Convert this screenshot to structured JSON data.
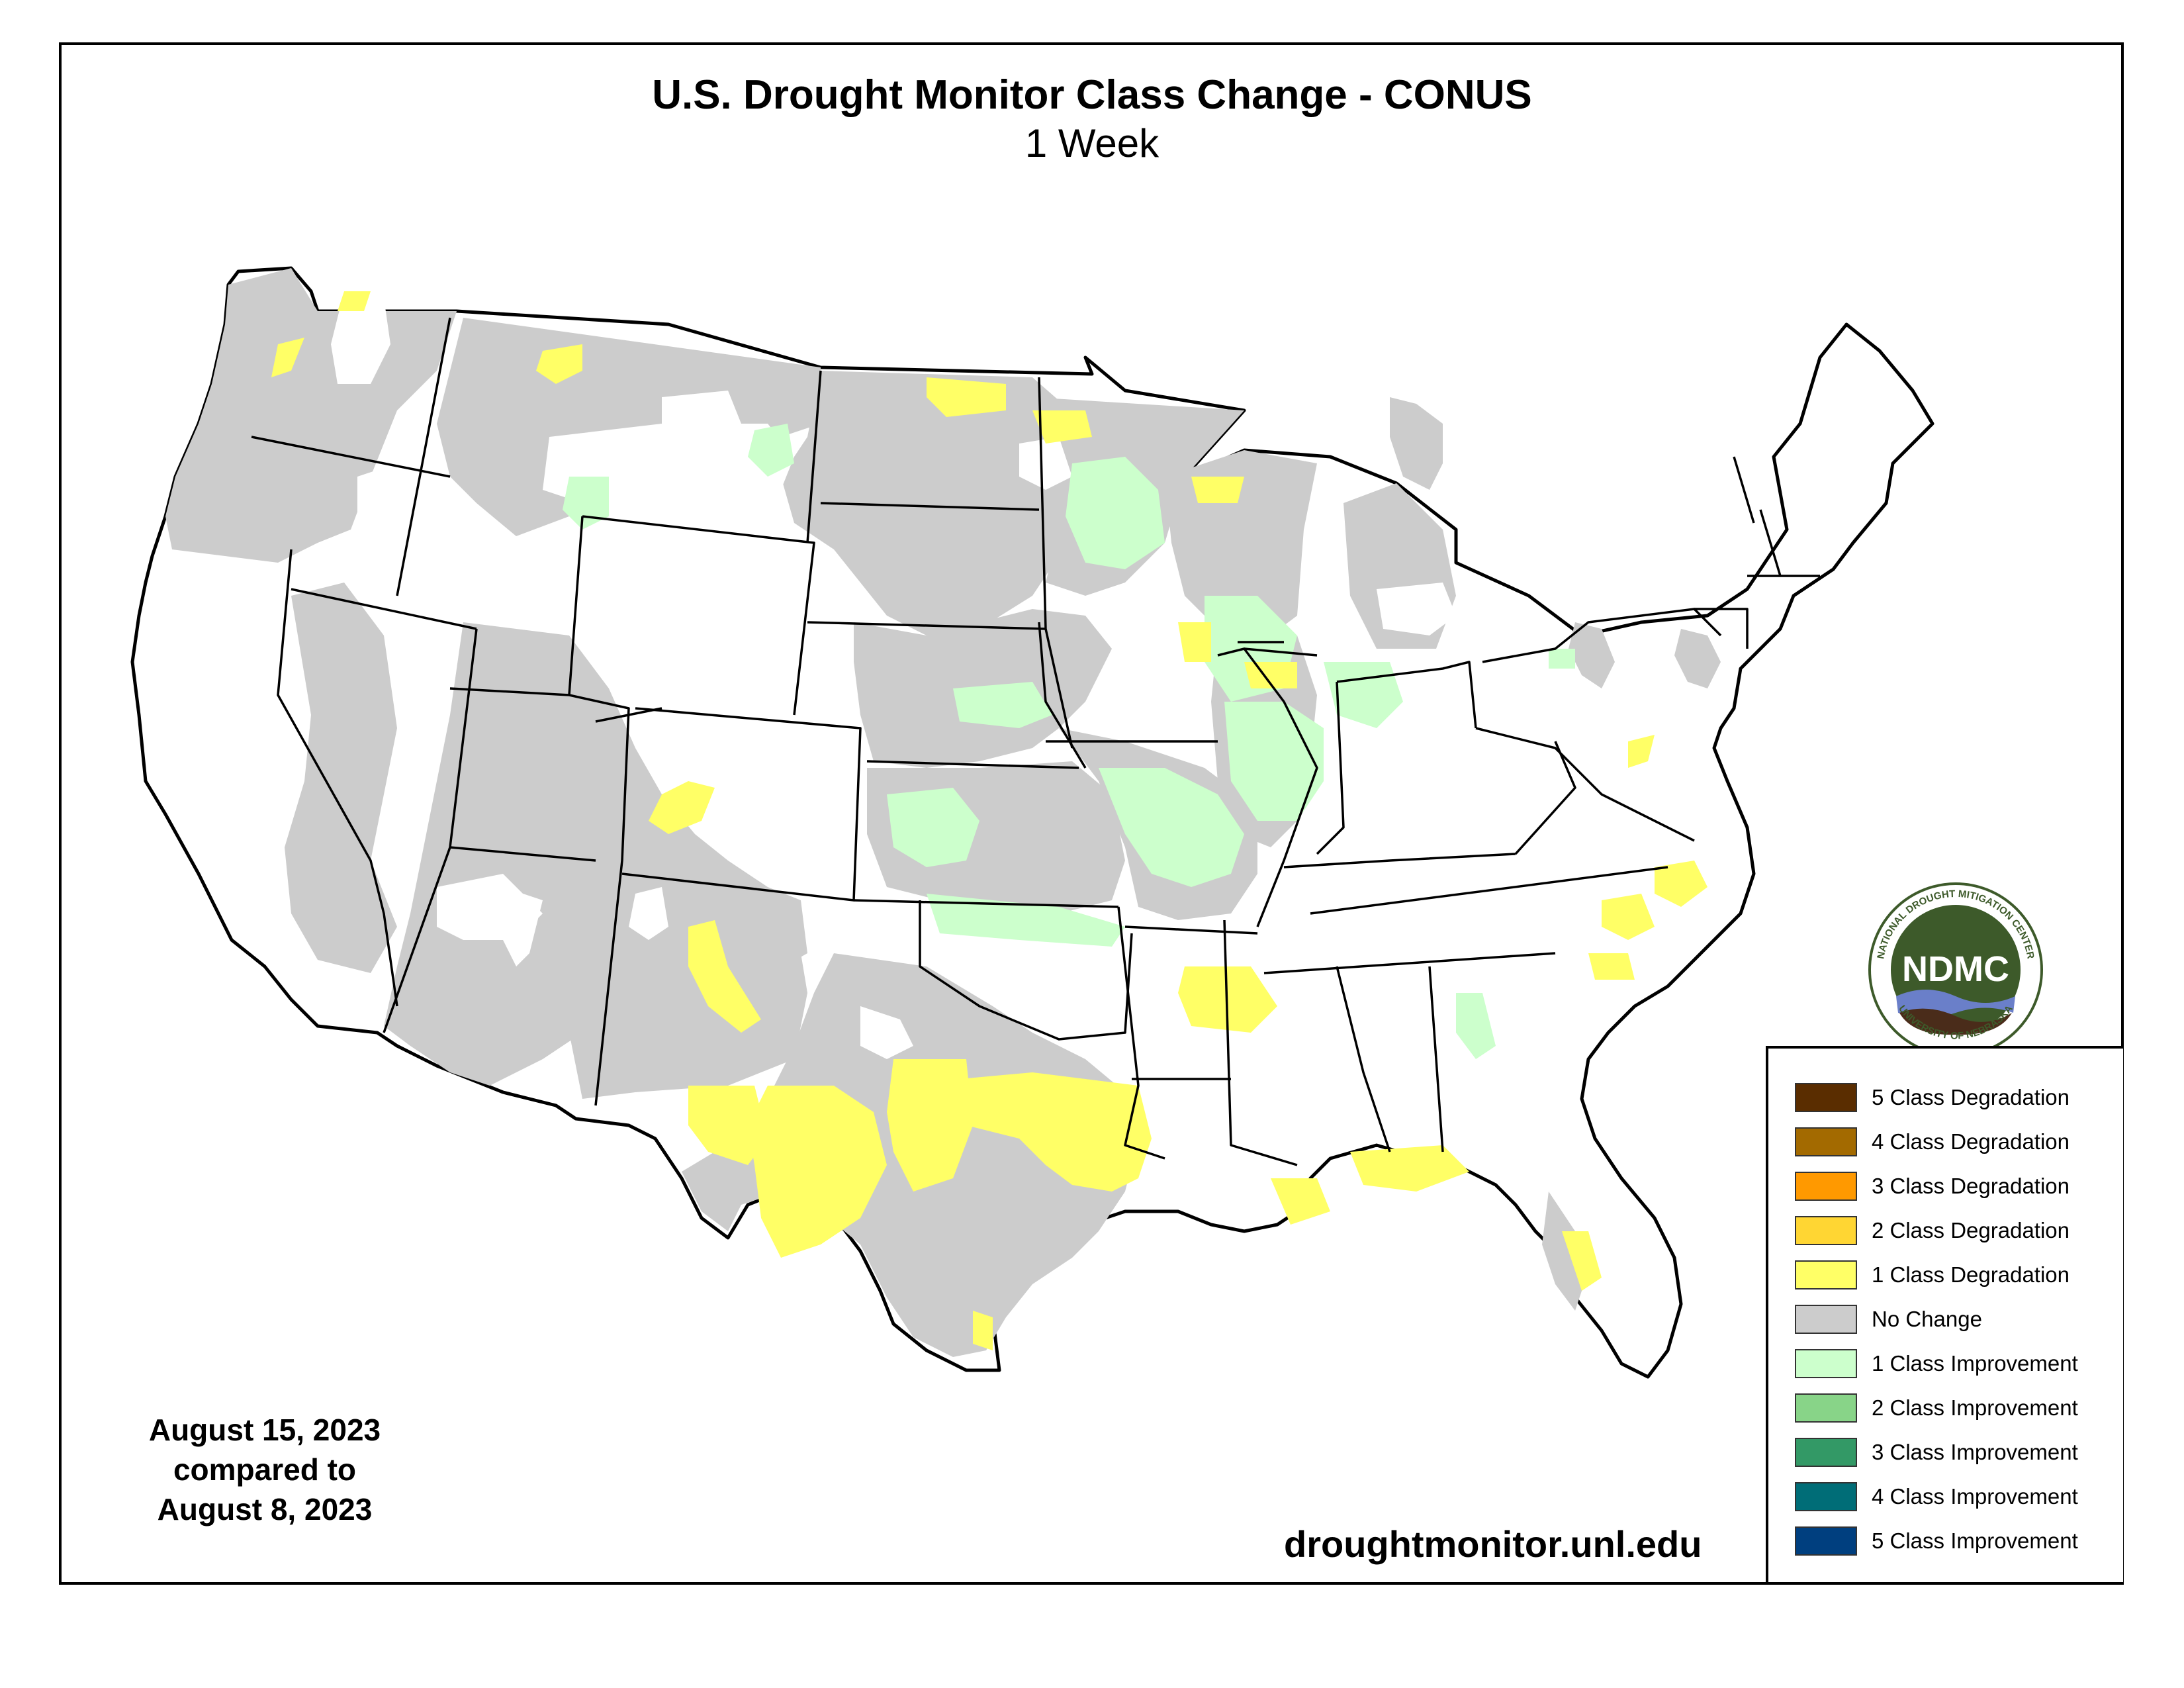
{
  "title": "U.S. Drought Monitor Class Change - CONUS",
  "subtitle": "1 Week",
  "date_block": {
    "line1": "August 15, 2023",
    "line2": "compared to",
    "line3": "August 8, 2023"
  },
  "website": "droughtmonitor.unl.edu",
  "logo": {
    "center_text": "NDMC",
    "ring_top": "NATIONAL DROUGHT MITIGATION CENTER",
    "ring_bottom": "UNIVERSITY OF NEBRASKA"
  },
  "legend": {
    "items": [
      {
        "label": "5 Class Degradation",
        "color": "#5a2d00"
      },
      {
        "label": "4 Class Degradation",
        "color": "#a36a00"
      },
      {
        "label": "3 Class Degradation",
        "color": "#ff9900"
      },
      {
        "label": "2 Class Degradation",
        "color": "#ffd633"
      },
      {
        "label": "1 Class Degradation",
        "color": "#ffff66"
      },
      {
        "label": "No Change",
        "color": "#cccccc"
      },
      {
        "label": "1 Class Improvement",
        "color": "#ccffcc"
      },
      {
        "label": "2 Class Improvement",
        "color": "#88d488"
      },
      {
        "label": "3 Class Improvement",
        "color": "#339966"
      },
      {
        "label": "4 Class Improvement",
        "color": "#006d77"
      },
      {
        "label": "5 Class Improvement",
        "color": "#003f7f"
      }
    ]
  },
  "colors": {
    "no_change": "#cccccc",
    "one_class_degradation": "#ffff66",
    "one_class_improvement": "#ccffcc",
    "logo_green": "#3d5a2a",
    "logo_brown": "#4a2c1a",
    "logo_blue": "#6a7fc9"
  }
}
